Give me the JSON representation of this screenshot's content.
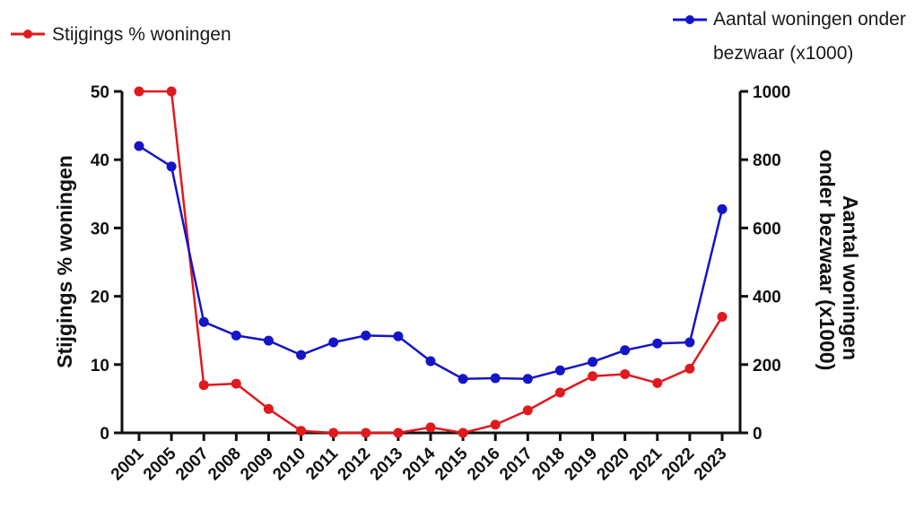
{
  "chart_data": {
    "type": "line",
    "categories": [
      "2001",
      "2005",
      "2007",
      "2008",
      "2009",
      "2010",
      "2011",
      "2012",
      "2013",
      "2014",
      "2015",
      "2016",
      "2017",
      "2018",
      "2019",
      "2020",
      "2021",
      "2022",
      "2023"
    ],
    "series": [
      {
        "name": "Stijgings % woningen",
        "axis": "left",
        "color": "#e0191f",
        "values": [
          50,
          50,
          7,
          7.2,
          3.5,
          0.3,
          0,
          0,
          0,
          0.8,
          0,
          1.2,
          3.3,
          5.9,
          8.3,
          8.6,
          7.3,
          9.4,
          17
        ]
      },
      {
        "name_lines": [
          "Aantal woningen onder",
          "bezwaar (x1000)"
        ],
        "name": "Aantal woningen onder bezwaar (x1000)",
        "axis": "right",
        "color": "#1414c8",
        "values": [
          840,
          780,
          325,
          285,
          270,
          228,
          265,
          285,
          283,
          210,
          158,
          160,
          158,
          183,
          208,
          242,
          262,
          265,
          655
        ]
      }
    ],
    "ylabel_left": "Stijgings % woningen",
    "ylabel_right_lines": [
      "Aantal woningen",
      "onder bezwaar (x1000)"
    ],
    "ylim_left": [
      0,
      50
    ],
    "yticks_left": [
      "0",
      "10",
      "20",
      "30",
      "40",
      "50"
    ],
    "ylim_right": [
      0,
      1000
    ],
    "yticks_right": [
      "0",
      "200",
      "400",
      "600",
      "800",
      "1000"
    ],
    "grid": false,
    "legend_position": "top"
  }
}
